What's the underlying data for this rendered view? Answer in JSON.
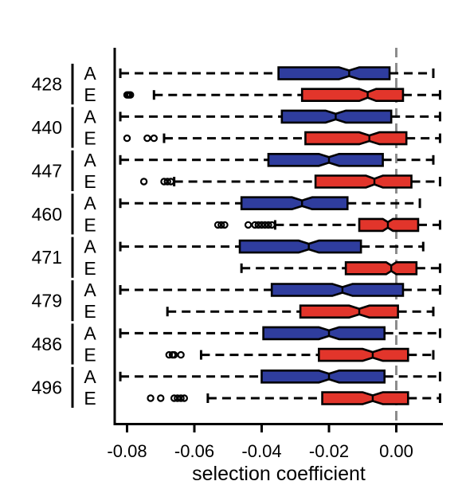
{
  "chart_data": {
    "type": "boxplot",
    "orientation": "horizontal",
    "title": "",
    "xlabel": "selection coefficient",
    "ylabel": "",
    "xlim": [
      -0.085,
      0.016
    ],
    "x_ticks": [
      "-0.08",
      "-0.06",
      "-0.04",
      "-0.02",
      "0.00"
    ],
    "x_tick_values": [
      -0.08,
      -0.06,
      -0.04,
      -0.02,
      0.0
    ],
    "reference_line": {
      "x": 0.0,
      "style": "dashed",
      "color": "#8c8c8c"
    },
    "grid": false,
    "notched": true,
    "colors": {
      "A": "#2f3d9e",
      "E": "#e2352b"
    },
    "groups": [
      {
        "label": "428",
        "rows": [
          {
            "series": "A",
            "whisker_low": -0.082,
            "q1": -0.035,
            "median": -0.014,
            "q3": -0.002,
            "whisker_high": 0.011,
            "notch_low": -0.017,
            "notch_high": -0.011,
            "outliers": []
          },
          {
            "series": "E",
            "whisker_low": -0.072,
            "q1": -0.028,
            "median": -0.0085,
            "q3": 0.002,
            "whisker_high": 0.013,
            "notch_low": -0.011,
            "notch_high": -0.006,
            "outliers": [
              -0.08,
              -0.0795,
              -0.079
            ]
          }
        ]
      },
      {
        "label": "440",
        "rows": [
          {
            "series": "A",
            "whisker_low": -0.082,
            "q1": -0.034,
            "median": -0.018,
            "q3": -0.0015,
            "whisker_high": 0.013,
            "notch_low": -0.021,
            "notch_high": -0.015,
            "outliers": []
          },
          {
            "series": "E",
            "whisker_low": -0.069,
            "q1": -0.027,
            "median": -0.008,
            "q3": 0.003,
            "whisker_high": 0.013,
            "notch_low": -0.011,
            "notch_high": -0.005,
            "outliers": [
              -0.08,
              -0.074,
              -0.072
            ]
          }
        ]
      },
      {
        "label": "447",
        "rows": [
          {
            "series": "A",
            "whisker_low": -0.082,
            "q1": -0.038,
            "median": -0.02,
            "q3": -0.004,
            "whisker_high": 0.011,
            "notch_low": -0.023,
            "notch_high": -0.017,
            "outliers": []
          },
          {
            "series": "E",
            "whisker_low": -0.066,
            "q1": -0.024,
            "median": -0.0065,
            "q3": 0.0045,
            "whisker_high": 0.013,
            "notch_low": -0.009,
            "notch_high": -0.004,
            "outliers": [
              -0.075,
              -0.069,
              -0.068,
              -0.067
            ]
          }
        ]
      },
      {
        "label": "460",
        "rows": [
          {
            "series": "A",
            "whisker_low": -0.082,
            "q1": -0.046,
            "median": -0.028,
            "q3": -0.0145,
            "whisker_high": 0.007,
            "notch_low": -0.031,
            "notch_high": -0.025,
            "outliers": []
          },
          {
            "series": "E",
            "whisker_low": -0.036,
            "q1": -0.011,
            "median": -0.0025,
            "q3": 0.0065,
            "whisker_high": 0.013,
            "notch_low": -0.004,
            "notch_high": -0.001,
            "outliers": [
              -0.053,
              -0.052,
              -0.051,
              -0.044,
              -0.042,
              -0.041,
              -0.04,
              -0.039,
              -0.038,
              -0.037
            ]
          }
        ]
      },
      {
        "label": "471",
        "rows": [
          {
            "series": "A",
            "whisker_low": -0.082,
            "q1": -0.0465,
            "median": -0.026,
            "q3": -0.0105,
            "whisker_high": 0.008,
            "notch_low": -0.029,
            "notch_high": -0.023,
            "outliers": []
          },
          {
            "series": "E",
            "whisker_low": -0.046,
            "q1": -0.015,
            "median": -0.0015,
            "q3": 0.006,
            "whisker_high": 0.013,
            "notch_low": -0.003,
            "notch_high": 0.0,
            "outliers": []
          }
        ]
      },
      {
        "label": "479",
        "rows": [
          {
            "series": "A",
            "whisker_low": -0.082,
            "q1": -0.037,
            "median": -0.016,
            "q3": 0.002,
            "whisker_high": 0.013,
            "notch_low": -0.019,
            "notch_high": -0.013,
            "outliers": []
          },
          {
            "series": "E",
            "whisker_low": -0.068,
            "q1": -0.0285,
            "median": -0.011,
            "q3": 0.0005,
            "whisker_high": 0.011,
            "notch_low": -0.014,
            "notch_high": -0.008,
            "outliers": []
          }
        ]
      },
      {
        "label": "486",
        "rows": [
          {
            "series": "A",
            "whisker_low": -0.082,
            "q1": -0.0395,
            "median": -0.02,
            "q3": -0.0035,
            "whisker_high": 0.013,
            "notch_low": -0.023,
            "notch_high": -0.017,
            "outliers": []
          },
          {
            "series": "E",
            "whisker_low": -0.058,
            "q1": -0.023,
            "median": -0.007,
            "q3": 0.0035,
            "whisker_high": 0.011,
            "notch_low": -0.01,
            "notch_high": -0.004,
            "outliers": [
              -0.0675,
              -0.0665,
              -0.066,
              -0.064
            ]
          }
        ]
      },
      {
        "label": "496",
        "rows": [
          {
            "series": "A",
            "whisker_low": -0.082,
            "q1": -0.04,
            "median": -0.02,
            "q3": -0.0035,
            "whisker_high": 0.013,
            "notch_low": -0.023,
            "notch_high": -0.017,
            "outliers": []
          },
          {
            "series": "E",
            "whisker_low": -0.056,
            "q1": -0.022,
            "median": -0.007,
            "q3": 0.0035,
            "whisker_high": 0.013,
            "notch_low": -0.01,
            "notch_high": -0.004,
            "outliers": [
              -0.073,
              -0.07,
              -0.066,
              -0.065,
              -0.064,
              -0.063
            ]
          }
        ]
      }
    ]
  }
}
